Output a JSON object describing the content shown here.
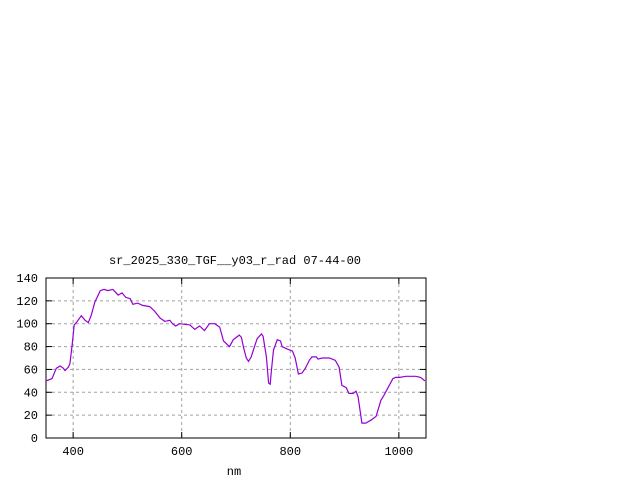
{
  "chart_data": {
    "type": "line",
    "title": "sr_2025_330_TGF__y03_r_rad 07-44-00",
    "xlabel": "nm",
    "ylabel": "",
    "xlim": [
      350,
      1050
    ],
    "ylim": [
      0,
      140
    ],
    "xticks": [
      400,
      600,
      800,
      1000
    ],
    "yticks": [
      0,
      20,
      40,
      60,
      80,
      100,
      120,
      140
    ],
    "grid": true,
    "line_color": "#9400d3",
    "series": [
      {
        "x": [
          350,
          361,
          369,
          376,
          382,
          385,
          391,
          394,
          398,
          402,
          406,
          415,
          422,
          428,
          433,
          440,
          450,
          457,
          464,
          473,
          483,
          490,
          497,
          505,
          510,
          519,
          528,
          541,
          550,
          560,
          569,
          578,
          583,
          589,
          596,
          615,
          624,
          633,
          642,
          651,
          661,
          670,
          677,
          688,
          695,
          706,
          710,
          714,
          719,
          723,
          728,
          734,
          739,
          747,
          750,
          756,
          760,
          763,
          765,
          769,
          776,
          782,
          785,
          794,
          804,
          809,
          815,
          822,
          829,
          835,
          840,
          848,
          851,
          859,
          872,
          883,
          890,
          895,
          903,
          908,
          916,
          921,
          925,
          932,
          939,
          950,
          958,
          967,
          972,
          980,
          989,
          994,
          1002,
          1013,
          1024,
          1031,
          1040,
          1048
        ],
        "y": [
          50,
          52,
          61,
          63,
          61,
          59,
          62,
          65,
          81,
          99,
          101,
          107,
          103,
          101,
          107,
          119,
          129,
          130,
          129,
          130,
          125,
          127,
          123,
          122,
          117,
          118,
          116,
          115,
          111,
          105,
          102,
          103,
          100,
          98,
          100,
          99,
          95,
          98,
          94,
          100,
          100,
          97,
          85,
          80,
          86,
          90,
          88,
          79,
          70,
          67,
          71,
          80,
          87,
          91,
          89,
          71,
          48,
          47,
          58,
          77,
          86,
          85,
          80,
          78,
          76,
          70,
          56,
          57,
          62,
          68,
          71,
          71,
          69,
          70,
          70,
          68,
          62,
          46,
          44,
          39,
          39,
          41,
          36,
          13,
          13,
          16,
          19,
          33,
          37,
          44,
          52,
          53,
          53,
          54,
          54,
          54,
          53,
          50
        ]
      }
    ]
  }
}
